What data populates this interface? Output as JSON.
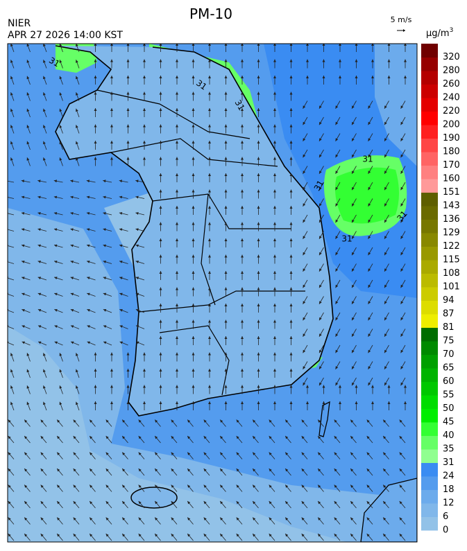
{
  "header": {
    "title": "PM-10",
    "agency": "NIER",
    "timestamp": "APR 27 2026 14:00 KST",
    "wind_scale": "5 m/s",
    "unit": "μg/m",
    "unit_sup": "3"
  },
  "map": {
    "contour_labels": [
      "31",
      "31",
      "31",
      "31",
      "31",
      "31",
      "31"
    ]
  },
  "colorbar": {
    "ticks": [
      0,
      6,
      12,
      18,
      24,
      31,
      35,
      40,
      45,
      50,
      55,
      60,
      65,
      70,
      75,
      81,
      87,
      94,
      101,
      108,
      115,
      122,
      129,
      136,
      143,
      151,
      160,
      170,
      180,
      190,
      200,
      220,
      240,
      260,
      280,
      320
    ],
    "colors": [
      "#92c2e8",
      "#80b7ea",
      "#6cabec",
      "#549cee",
      "#3a8cf2",
      "#90ff90",
      "#66ff66",
      "#33ff33",
      "#00ee00",
      "#00dd00",
      "#00c800",
      "#00b400",
      "#00a000",
      "#008a00",
      "#006e00",
      "#eeee00",
      "#dddd00",
      "#cccc00",
      "#bbbb00",
      "#aaaa00",
      "#999900",
      "#888800",
      "#777700",
      "#6a6a00",
      "#5e5e00",
      "#ff9a9a",
      "#ff8080",
      "#ff6464",
      "#ff4646",
      "#ff2020",
      "#ff0000",
      "#e40000",
      "#cc0000",
      "#b40000",
      "#960000",
      "#700000"
    ]
  }
}
